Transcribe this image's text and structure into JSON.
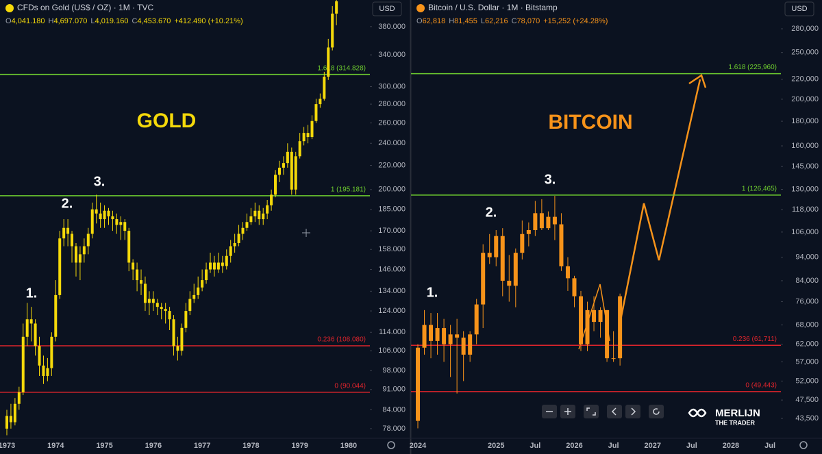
{
  "chart_data": [
    {
      "type": "candlestick",
      "title": "CFDs on Gold (US$ / OZ) · 1M · TVC",
      "subtitle": [
        "O",
        "4,041.180",
        "H",
        "4,697.070",
        "L",
        "4,019.160",
        "C",
        "4,453.670",
        "+412.490 (+10.21%)"
      ],
      "currency": "USD",
      "log": true,
      "grid": false,
      "categories": [
        "1973",
        null,
        null,
        null,
        null,
        null,
        null,
        null,
        null,
        null,
        null,
        null,
        "1974",
        null,
        null,
        null,
        null,
        null,
        null,
        null,
        null,
        null,
        null,
        null,
        "1975",
        null,
        null,
        null,
        null,
        null,
        null,
        null,
        null,
        null,
        null,
        null,
        "1976",
        null,
        null,
        null,
        null,
        null,
        null,
        null,
        null,
        null,
        null,
        null,
        "1977",
        null,
        null,
        null,
        null,
        null,
        null,
        null,
        null,
        null,
        null,
        null,
        "1978",
        null,
        null,
        null,
        null,
        null,
        null,
        null,
        null,
        null,
        null,
        null,
        "1979",
        null,
        null,
        null,
        null,
        null,
        null,
        null,
        null,
        null,
        null,
        null,
        "1980",
        null,
        null,
        null,
        null,
        null
      ],
      "series": [
        {
          "color": "#f5d90a",
          "open": [
            78,
            82,
            80,
            86,
            90,
            112,
            120,
            118,
            108,
            100,
            96,
            99,
            112,
            132,
            165,
            172,
            168,
            160,
            150,
            155,
            160,
            168,
            185,
            182,
            178,
            184,
            180,
            178,
            174,
            176,
            170,
            150,
            146,
            140,
            138,
            128,
            130,
            128,
            126,
            125,
            124,
            120,
            108,
            106,
            116,
            124,
            130,
            132,
            136,
            140,
            146,
            150,
            146,
            150,
            148,
            154,
            160,
            162,
            168,
            172,
            176,
            180,
            184,
            178,
            182,
            188,
            196,
            212,
            218,
            222,
            232,
            200,
            228,
            242,
            250,
            246,
            262,
            280,
            286,
            312,
            350,
            400,
            null,
            null,
            null,
            null,
            null,
            null,
            null,
            null
          ],
          "high": [
            84,
            86,
            88,
            92,
            118,
            128,
            126,
            120,
            112,
            104,
            103,
            114,
            140,
            170,
            178,
            178,
            170,
            162,
            160,
            165,
            172,
            190,
            196,
            190,
            188,
            186,
            184,
            182,
            180,
            178,
            172,
            152,
            150,
            146,
            142,
            134,
            134,
            130,
            128,
            128,
            126,
            122,
            112,
            118,
            128,
            134,
            138,
            142,
            146,
            150,
            156,
            154,
            156,
            154,
            158,
            164,
            168,
            174,
            176,
            182,
            186,
            190,
            188,
            186,
            192,
            200,
            216,
            224,
            228,
            240,
            236,
            232,
            250,
            256,
            258,
            268,
            286,
            292,
            318,
            362,
            412,
            430,
            null,
            null,
            null,
            null,
            null,
            null,
            null,
            null
          ],
          "low": [
            76,
            78,
            79,
            84,
            89,
            108,
            110,
            104,
            96,
            93,
            94,
            96,
            110,
            130,
            160,
            160,
            150,
            142,
            140,
            150,
            155,
            165,
            175,
            172,
            172,
            174,
            170,
            168,
            164,
            164,
            145,
            140,
            134,
            132,
            124,
            122,
            124,
            122,
            120,
            118,
            115,
            104,
            102,
            104,
            114,
            122,
            128,
            130,
            134,
            138,
            144,
            142,
            144,
            144,
            146,
            150,
            156,
            160,
            164,
            170,
            174,
            176,
            174,
            174,
            178,
            184,
            194,
            206,
            212,
            218,
            196,
            196,
            226,
            238,
            240,
            244,
            260,
            276,
            284,
            308,
            346,
            382,
            null,
            null,
            null,
            null,
            null,
            null,
            null,
            null
          ],
          "close": [
            82,
            80,
            86,
            90,
            112,
            120,
            118,
            108,
            100,
            96,
            99,
            112,
            132,
            165,
            172,
            168,
            160,
            150,
            155,
            160,
            168,
            185,
            182,
            178,
            184,
            180,
            178,
            174,
            176,
            170,
            150,
            146,
            140,
            138,
            128,
            130,
            128,
            126,
            125,
            124,
            120,
            108,
            106,
            116,
            124,
            130,
            132,
            136,
            140,
            146,
            150,
            146,
            150,
            148,
            154,
            160,
            162,
            168,
            172,
            176,
            180,
            184,
            178,
            182,
            188,
            196,
            212,
            218,
            222,
            232,
            200,
            228,
            242,
            250,
            246,
            262,
            280,
            286,
            312,
            350,
            400,
            420,
            null,
            null,
            null,
            null,
            null,
            null,
            null,
            null
          ]
        }
      ],
      "ylim": [
        75.1,
        422
      ],
      "yticks": [
        {
          "value": 78,
          "label": "78.000"
        },
        {
          "value": 84,
          "label": "84.000"
        },
        {
          "value": 91,
          "label": "91.000"
        },
        {
          "value": 98,
          "label": "98.000"
        },
        {
          "value": 106,
          "label": "106.000"
        },
        {
          "value": 114,
          "label": "114.000"
        },
        {
          "value": 124,
          "label": "124.000"
        },
        {
          "value": 134,
          "label": "134.000"
        },
        {
          "value": 146,
          "label": "146.000"
        },
        {
          "value": 158,
          "label": "158.000"
        },
        {
          "value": 170,
          "label": "170.000"
        },
        {
          "value": 185,
          "label": "185.000"
        },
        {
          "value": 200,
          "label": "200.000"
        },
        {
          "value": 220,
          "label": "220.000"
        },
        {
          "value": 240,
          "label": "240.000"
        },
        {
          "value": 260,
          "label": "260.000"
        },
        {
          "value": 280,
          "label": "280.000"
        },
        {
          "value": 300,
          "label": "300.000"
        },
        {
          "value": 340,
          "label": "340.000"
        },
        {
          "value": 380,
          "label": "380.000"
        }
      ],
      "levels": [
        {
          "value": 314.828,
          "label": "1.618 (314.828)",
          "color": "#6fcf2f"
        },
        {
          "value": 195.181,
          "label": "1 (195.181)",
          "color": "#6fcf2f"
        },
        {
          "value": 108.08,
          "label": "0.236 (108.080)",
          "color": "#e0242c"
        },
        {
          "value": 90.044,
          "label": "0 (90.044)",
          "color": "#e0242c"
        }
      ],
      "annotations": [
        "GOLD",
        "1.",
        "2.",
        "3."
      ]
    },
    {
      "type": "candlestick",
      "title": "Bitcoin / U.S. Dollar · 1M · Bitstamp",
      "subtitle": [
        "O",
        "62,818",
        "H",
        "81,455",
        "L",
        "62,216",
        "C",
        "78,070",
        "+15,252 (+24.28%)"
      ],
      "currency": "USD",
      "log": true,
      "grid": false,
      "categories": [
        "2024",
        null,
        null,
        null,
        null,
        null,
        null,
        null,
        null,
        null,
        null,
        null,
        "2025",
        null,
        null,
        null,
        null,
        null,
        "Jul",
        null,
        null,
        null,
        null,
        null,
        "2026",
        null,
        null,
        null,
        null,
        null,
        "Jul",
        null,
        null,
        null,
        null,
        null,
        "2027",
        null,
        null,
        null,
        null,
        null,
        "Jul",
        null,
        null,
        null,
        null,
        null,
        "2028",
        null,
        null,
        null,
        null,
        null,
        "Jul",
        null
      ],
      "series": [
        {
          "color": "#f7931a",
          "open": [
            43000,
            61000,
            68000,
            63000,
            67000,
            62000,
            65000,
            64000,
            59000,
            65000,
            75000,
            96000,
            94000,
            104000,
            84000,
            82000,
            96000,
            105000,
            107000,
            116000,
            108000,
            114000,
            110000,
            90000,
            85000,
            78000,
            62000,
            73000,
            69000,
            73000,
            58000,
            58000,
            null,
            null,
            null,
            null,
            null,
            null,
            null,
            null,
            null,
            null,
            null,
            null,
            null,
            null,
            null,
            null,
            null,
            null,
            null,
            null,
            null,
            null,
            null,
            null
          ],
          "high": [
            62000,
            73000,
            72000,
            72000,
            70000,
            68000,
            70000,
            66000,
            66000,
            77000,
            100000,
            105000,
            107000,
            108000,
            95000,
            98000,
            112000,
            111000,
            123000,
            124000,
            117000,
            126000,
            116000,
            94000,
            86000,
            80000,
            76000,
            78000,
            74000,
            73000,
            66000,
            79000,
            null,
            null,
            null,
            null,
            null,
            null,
            null,
            null,
            null,
            null,
            null,
            null,
            null,
            null,
            null,
            null,
            null,
            null,
            null,
            null,
            null,
            null,
            null,
            null
          ],
          "low": [
            41500,
            59000,
            58000,
            59000,
            57000,
            53000,
            49000,
            52000,
            57000,
            62000,
            67000,
            91000,
            90000,
            78000,
            76000,
            74000,
            93000,
            99000,
            104000,
            107000,
            107000,
            102000,
            88000,
            80000,
            74000,
            60000,
            60000,
            66000,
            64000,
            57000,
            57000,
            56000,
            null,
            null,
            null,
            null,
            null,
            null,
            null,
            null,
            null,
            null,
            null,
            null,
            null,
            null,
            null,
            null,
            null,
            null,
            null,
            null,
            null,
            null,
            null,
            null
          ],
          "close": [
            61000,
            68000,
            63000,
            67000,
            62000,
            65000,
            64000,
            59000,
            65000,
            75000,
            96000,
            94000,
            104000,
            84000,
            82000,
            96000,
            105000,
            107000,
            116000,
            108000,
            114000,
            110000,
            90000,
            85000,
            78000,
            62000,
            73000,
            69000,
            73000,
            58000,
            58000,
            78000,
            null,
            null,
            null,
            null,
            null,
            null,
            null,
            null,
            null,
            null,
            null,
            null,
            null,
            null,
            null,
            null,
            null,
            null,
            null,
            null,
            null,
            null,
            null,
            null
          ]
        }
      ],
      "ylim": [
        39570,
        321300
      ],
      "yticks": [
        {
          "value": 43500,
          "label": "43,500"
        },
        {
          "value": 47500,
          "label": "47,500"
        },
        {
          "value": 52000,
          "label": "52,000"
        },
        {
          "value": 57000,
          "label": "57,000"
        },
        {
          "value": 62000,
          "label": "62,000"
        },
        {
          "value": 68000,
          "label": "68,000"
        },
        {
          "value": 76000,
          "label": "76,000"
        },
        {
          "value": 84000,
          "label": "84,000"
        },
        {
          "value": 94000,
          "label": "94,000"
        },
        {
          "value": 106000,
          "label": "106,000"
        },
        {
          "value": 118000,
          "label": "118,000"
        },
        {
          "value": 130000,
          "label": "130,000"
        },
        {
          "value": 145000,
          "label": "145,000"
        },
        {
          "value": 160000,
          "label": "160,000"
        },
        {
          "value": 180000,
          "label": "180,000"
        },
        {
          "value": 200000,
          "label": "200,000"
        },
        {
          "value": 220000,
          "label": "220,000"
        },
        {
          "value": 250000,
          "label": "250,000"
        },
        {
          "value": 280000,
          "label": "280,000"
        }
      ],
      "levels": [
        {
          "value": 225960,
          "label": "1.618 (225,960)",
          "color": "#6fcf2f"
        },
        {
          "value": 126465,
          "label": "1 (126,465)",
          "color": "#6fcf2f"
        },
        {
          "value": 61711,
          "label": "0.236 (61,711)",
          "color": "#e0242c"
        },
        {
          "value": 49443,
          "label": "0 (49,443)",
          "color": "#e0242c"
        }
      ],
      "annotations": [
        "BITCOIN",
        "1.",
        "2.",
        "3."
      ]
    }
  ],
  "watermark": {
    "name": "MERLIJN",
    "tagline": "THE TRADER"
  }
}
